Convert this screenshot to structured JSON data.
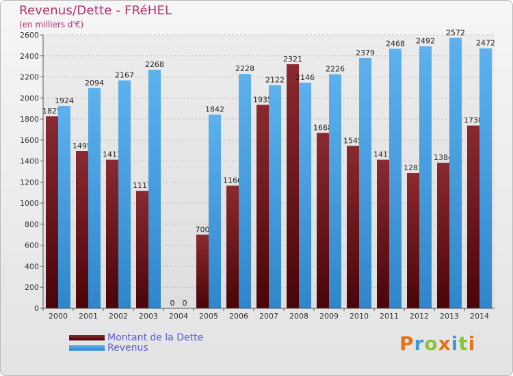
{
  "header": {
    "title": "Revenus/Dette - FRéHEL",
    "subtitle": "(en milliers d'€)"
  },
  "legend": {
    "items": [
      {
        "label": "Montant de la Dette",
        "color": "#6b0f14"
      },
      {
        "label": "Revenus",
        "color": "#4aa3e6"
      }
    ]
  },
  "brand": {
    "letters": [
      "P",
      "r",
      "o",
      "x",
      "i",
      "t",
      "i"
    ],
    "colors": [
      "#e5731b",
      "#3a9ad9",
      "#8bc33a",
      "#e5731b",
      "#3a9ad9",
      "#8bc33a",
      "#e5731b"
    ]
  },
  "chart_data": {
    "type": "bar",
    "categories": [
      "2000",
      "2001",
      "2002",
      "2003",
      "2004",
      "2005",
      "2006",
      "2007",
      "2008",
      "2009",
      "2010",
      "2011",
      "2012",
      "2013",
      "2014"
    ],
    "series": [
      {
        "name": "Montant de la Dette",
        "values": [
          1825,
          1495,
          1413,
          1117,
          0,
          700,
          1166,
          1935,
          2321,
          1668,
          1545,
          1413,
          1287,
          1384,
          1738
        ],
        "labels": [
          "1825",
          "1495",
          "1413",
          "1117",
          "0",
          "700",
          "1166",
          "1935",
          "2321",
          "1668",
          "1545",
          "1413",
          "1287",
          "1384",
          "1738"
        ]
      },
      {
        "name": "Revenus",
        "values": [
          1924,
          2094,
          2167,
          2268,
          0,
          1842,
          2228,
          2122,
          2146,
          2226,
          2379,
          2468,
          2492,
          2572,
          2472
        ],
        "labels": [
          "1924",
          "2094",
          "2167",
          "2268",
          "0",
          "1842",
          "2228",
          "2122",
          "2146",
          "2226",
          "2379",
          "2468",
          "2492",
          "2572",
          "2472"
        ]
      }
    ],
    "ylim": [
      0,
      2600
    ],
    "yticks": [
      0,
      200,
      400,
      600,
      800,
      1000,
      1200,
      1400,
      1600,
      1800,
      2000,
      2200,
      2400,
      2600
    ],
    "grid": true,
    "legend_position": "bottom-left"
  }
}
